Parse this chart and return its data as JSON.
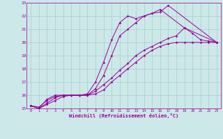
{
  "background_color": "#cce8e8",
  "grid_color": "#aacccc",
  "line_color": "#990099",
  "marker_color": "#990099",
  "xlabel": "Windchill (Refroidissement éolien,°C)",
  "xlabel_color": "#990099",
  "tick_color": "#990099",
  "xlim": [
    -0.5,
    23.5
  ],
  "ylim": [
    15,
    23
  ],
  "yticks": [
    15,
    16,
    17,
    18,
    19,
    20,
    21,
    22,
    23
  ],
  "xticks": [
    0,
    1,
    2,
    3,
    4,
    5,
    6,
    7,
    8,
    9,
    10,
    11,
    12,
    13,
    14,
    15,
    16,
    17,
    18,
    19,
    20,
    21,
    22,
    23
  ],
  "line1_x": [
    0,
    1,
    2,
    3,
    4,
    5,
    6,
    7,
    8,
    9,
    10,
    11,
    12,
    13,
    14,
    15,
    16,
    17,
    23
  ],
  "line1_y": [
    15.2,
    15.0,
    15.7,
    16.0,
    16.0,
    16.0,
    16.0,
    16.1,
    17.0,
    18.5,
    20.2,
    21.5,
    22.0,
    21.8,
    22.0,
    22.2,
    22.3,
    22.8,
    20.0
  ],
  "line2_x": [
    0,
    1,
    2,
    3,
    4,
    5,
    6,
    7,
    8,
    9,
    10,
    11,
    12,
    13,
    14,
    15,
    16,
    19,
    23
  ],
  "line2_y": [
    15.2,
    15.1,
    15.6,
    15.9,
    16.0,
    16.0,
    16.0,
    16.0,
    16.5,
    17.5,
    19.0,
    20.5,
    21.0,
    21.5,
    22.0,
    22.2,
    22.5,
    21.1,
    20.0
  ],
  "line3_x": [
    0,
    1,
    2,
    3,
    4,
    5,
    6,
    7,
    8,
    9,
    10,
    11,
    12,
    13,
    14,
    15,
    16,
    17,
    18,
    19,
    20,
    21,
    22,
    23
  ],
  "line3_y": [
    15.2,
    15.0,
    15.3,
    15.6,
    15.9,
    16.0,
    16.0,
    16.0,
    16.1,
    16.4,
    17.0,
    17.5,
    18.0,
    18.5,
    19.0,
    19.4,
    19.7,
    19.9,
    20.0,
    20.0,
    20.0,
    20.0,
    20.0,
    20.0
  ],
  "line4_x": [
    0,
    1,
    2,
    3,
    4,
    5,
    6,
    7,
    8,
    9,
    10,
    11,
    12,
    13,
    14,
    15,
    16,
    17,
    18,
    19,
    20,
    21,
    22,
    23
  ],
  "line4_y": [
    15.2,
    15.0,
    15.4,
    15.8,
    16.0,
    16.0,
    16.0,
    16.0,
    16.3,
    16.8,
    17.3,
    17.9,
    18.4,
    19.0,
    19.4,
    19.7,
    20.0,
    20.3,
    20.5,
    21.1,
    20.7,
    20.2,
    20.1,
    20.0
  ]
}
